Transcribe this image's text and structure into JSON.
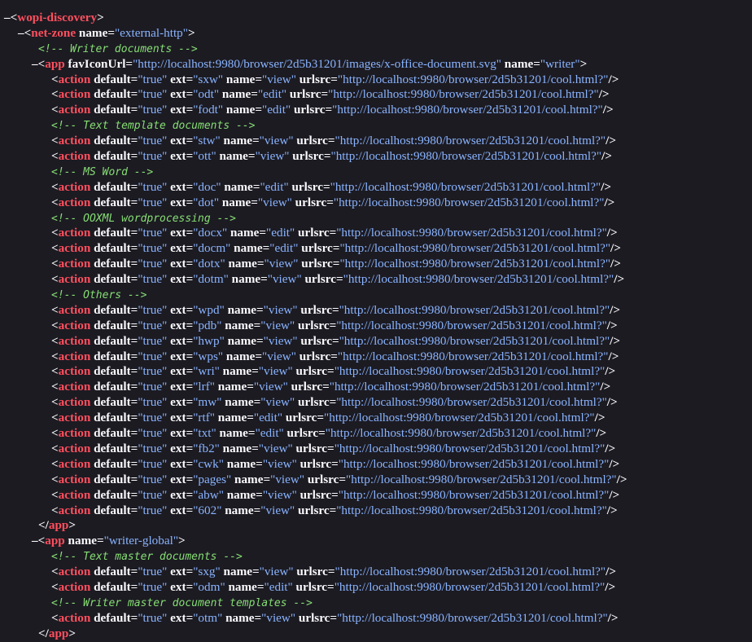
{
  "colors": {
    "background": "#1c1b22",
    "tag": "#ff4f5e",
    "attr_value": "#8ab4ff",
    "comment": "#86de74",
    "text": "#fbfbfe"
  },
  "lines": [
    {
      "kind": "open",
      "collapsible": true,
      "depth": 0,
      "tag": "wopi-discovery",
      "attrs": []
    },
    {
      "kind": "open",
      "collapsible": true,
      "depth": 1,
      "tag": "net-zone",
      "attrs": [
        {
          "n": "name",
          "v": "external-http"
        }
      ]
    },
    {
      "kind": "comment",
      "depth": 2,
      "text": "<!-- Writer documents -->"
    },
    {
      "kind": "open",
      "collapsible": true,
      "depth": 2,
      "tag": "app",
      "attrs": [
        {
          "n": "favIconUrl",
          "v": "http://localhost:9980/browser/2d5b31201/images/x-office-document.svg"
        },
        {
          "n": "name",
          "v": "writer"
        }
      ]
    },
    {
      "kind": "action",
      "depth": 3,
      "ext": "sxw",
      "name": "view"
    },
    {
      "kind": "action",
      "depth": 3,
      "ext": "odt",
      "name": "edit"
    },
    {
      "kind": "action",
      "depth": 3,
      "ext": "fodt",
      "name": "edit"
    },
    {
      "kind": "comment",
      "depth": 3,
      "text": "<!-- Text template documents -->"
    },
    {
      "kind": "action",
      "depth": 3,
      "ext": "stw",
      "name": "view"
    },
    {
      "kind": "action",
      "depth": 3,
      "ext": "ott",
      "name": "view"
    },
    {
      "kind": "comment",
      "depth": 3,
      "text": "<!-- MS Word -->"
    },
    {
      "kind": "action",
      "depth": 3,
      "ext": "doc",
      "name": "edit"
    },
    {
      "kind": "action",
      "depth": 3,
      "ext": "dot",
      "name": "view"
    },
    {
      "kind": "comment",
      "depth": 3,
      "text": "<!-- OOXML wordprocessing -->"
    },
    {
      "kind": "action",
      "depth": 3,
      "ext": "docx",
      "name": "edit"
    },
    {
      "kind": "action",
      "depth": 3,
      "ext": "docm",
      "name": "edit"
    },
    {
      "kind": "action",
      "depth": 3,
      "ext": "dotx",
      "name": "view"
    },
    {
      "kind": "action",
      "depth": 3,
      "ext": "dotm",
      "name": "view"
    },
    {
      "kind": "comment",
      "depth": 3,
      "text": "<!-- Others -->"
    },
    {
      "kind": "action",
      "depth": 3,
      "ext": "wpd",
      "name": "view"
    },
    {
      "kind": "action",
      "depth": 3,
      "ext": "pdb",
      "name": "view"
    },
    {
      "kind": "action",
      "depth": 3,
      "ext": "hwp",
      "name": "view"
    },
    {
      "kind": "action",
      "depth": 3,
      "ext": "wps",
      "name": "view"
    },
    {
      "kind": "action",
      "depth": 3,
      "ext": "wri",
      "name": "view"
    },
    {
      "kind": "action",
      "depth": 3,
      "ext": "lrf",
      "name": "view"
    },
    {
      "kind": "action",
      "depth": 3,
      "ext": "mw",
      "name": "view"
    },
    {
      "kind": "action",
      "depth": 3,
      "ext": "rtf",
      "name": "edit"
    },
    {
      "kind": "action",
      "depth": 3,
      "ext": "txt",
      "name": "edit"
    },
    {
      "kind": "action",
      "depth": 3,
      "ext": "fb2",
      "name": "view"
    },
    {
      "kind": "action",
      "depth": 3,
      "ext": "cwk",
      "name": "view"
    },
    {
      "kind": "action",
      "depth": 3,
      "ext": "pages",
      "name": "view"
    },
    {
      "kind": "action",
      "depth": 3,
      "ext": "abw",
      "name": "view"
    },
    {
      "kind": "action",
      "depth": 3,
      "ext": "602",
      "name": "view"
    },
    {
      "kind": "close",
      "depth": 2,
      "tag": "app"
    },
    {
      "kind": "open",
      "collapsible": true,
      "depth": 2,
      "tag": "app",
      "attrs": [
        {
          "n": "name",
          "v": "writer-global"
        }
      ]
    },
    {
      "kind": "comment",
      "depth": 3,
      "text": "<!-- Text master documents -->"
    },
    {
      "kind": "action",
      "depth": 3,
      "ext": "sxg",
      "name": "view"
    },
    {
      "kind": "action",
      "depth": 3,
      "ext": "odm",
      "name": "edit"
    },
    {
      "kind": "comment",
      "depth": 3,
      "text": "<!-- Writer master document templates -->"
    },
    {
      "kind": "action",
      "depth": 3,
      "ext": "otm",
      "name": "view"
    },
    {
      "kind": "close",
      "depth": 2,
      "tag": "app"
    }
  ],
  "action_defaults": {
    "tag": "action",
    "default": "true",
    "urlsrc": "http://localhost:9980/browser/2d5b31201/cool.html?"
  },
  "symbols": {
    "collapse": "–",
    "lt": "<",
    "gt": ">",
    "close_lt": "</",
    "self_close": "/>",
    "eq": "=",
    "quote": "\""
  }
}
